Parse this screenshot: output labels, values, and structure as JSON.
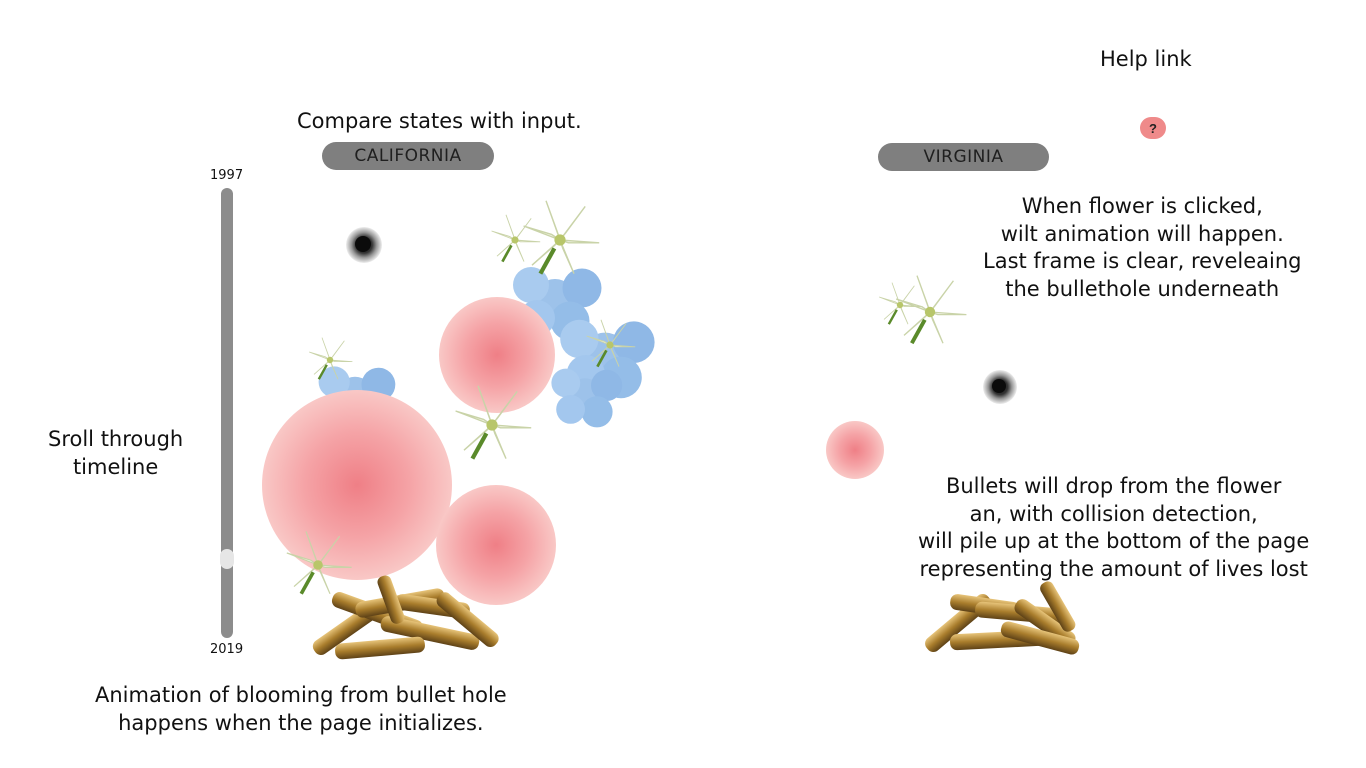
{
  "annotations": {
    "help_link": "Help link",
    "compare_states": "Compare states with input.",
    "scroll_timeline": [
      "Sroll through",
      "timeline"
    ],
    "wilt_note": [
      "When flower is clicked,",
      "wilt animation will happen.",
      "Last frame is clear, reveleaing",
      "the bullethole underneath"
    ],
    "bullets_note": [
      "Bullets will drop from the flower",
      "an, with collision detection,",
      "will pile up at the bottom of the page",
      "representing the amount of lives lost"
    ],
    "blooming_note": [
      "Animation of blooming from bullet hole",
      "happens when the page initializes."
    ]
  },
  "inputs": {
    "state_left": "CALIFORNIA",
    "state_right": "VIRGINIA"
  },
  "timeline": {
    "start_year": "1997",
    "end_year": "2019",
    "position": 0.84
  },
  "help_button": {
    "label": "?",
    "icon": "question-icon",
    "color": "#ef8a8a"
  },
  "colors": {
    "carnation": "#f4a7a7",
    "hydrangea": "#9cc3ea",
    "lily": "#f4f6e8",
    "bullet_brass": "#b08a3e",
    "pill": "#7f7f7f"
  }
}
